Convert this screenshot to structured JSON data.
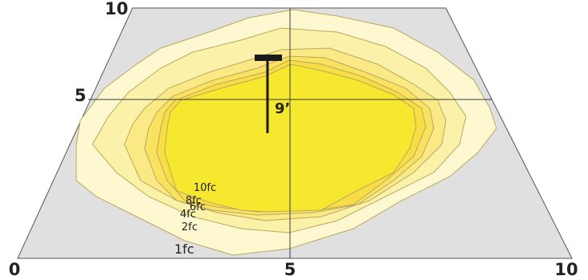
{
  "diagram": {
    "axis": {
      "x_labels": [
        "0",
        "5",
        "10"
      ],
      "y_labels": [
        "10",
        "5"
      ]
    },
    "fixture": {
      "mounting_height_label": "9’"
    },
    "contours": [
      {
        "label": "1fc",
        "color": "#fdf8cf"
      },
      {
        "label": "2fc",
        "color": "#fcf1a9"
      },
      {
        "label": "4fc",
        "color": "#fbe985"
      },
      {
        "label": "6fc",
        "color": "#f9e260"
      },
      {
        "label": "8fc",
        "color": "#f8dd45"
      },
      {
        "label": "10fc",
        "color": "#f6e72f"
      }
    ],
    "colors": {
      "floor": "#e0e0e0",
      "outline": "#3a3a3a",
      "fixture": "#1a1a1a"
    }
  }
}
